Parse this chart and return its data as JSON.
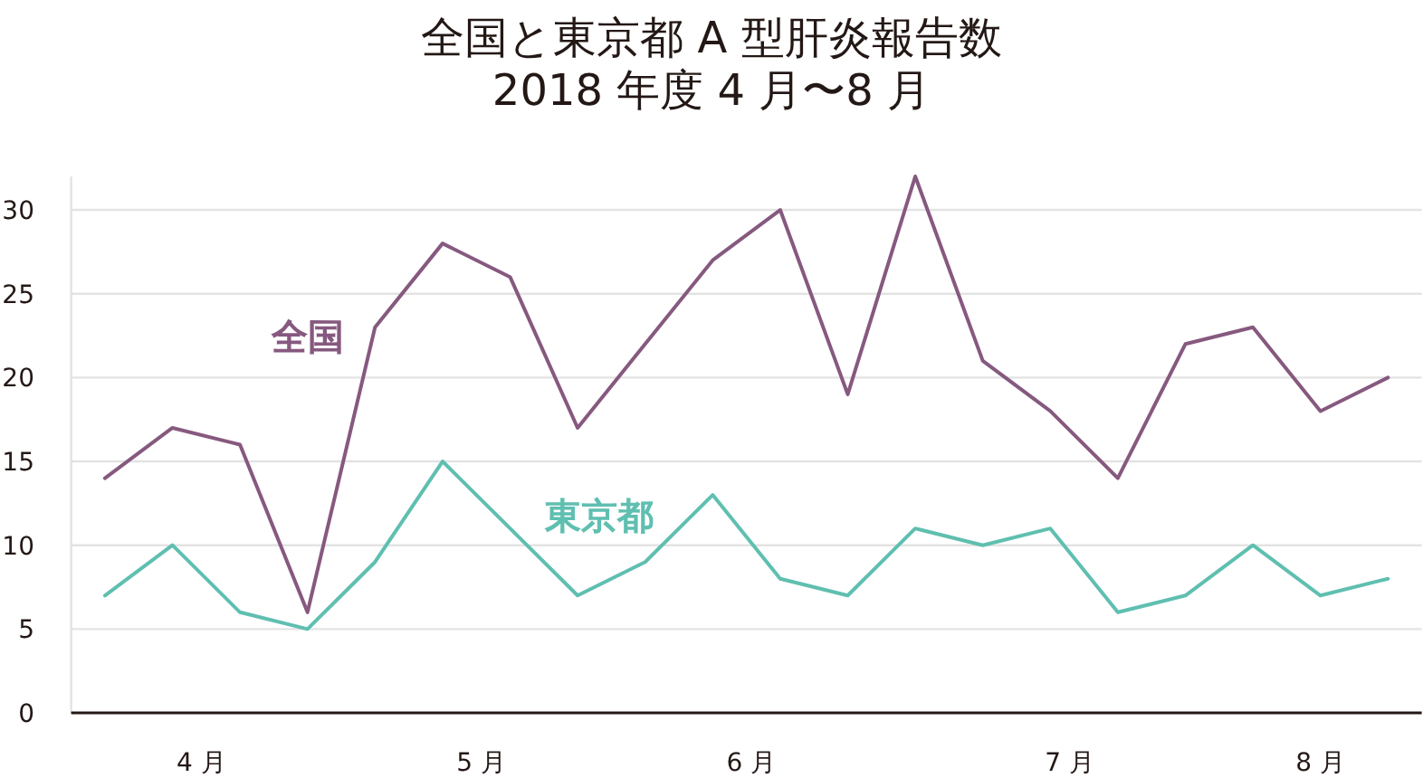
{
  "chart_data": {
    "type": "line",
    "title": "全国と東京都 A 型肝炎報告数",
    "subtitle": "2018 年度 4 月〜8 月",
    "x": [
      "2018-04-05",
      "2018-04-12",
      "2018-04-19",
      "2018-04-26",
      "2018-05-03",
      "2018-05-10",
      "2018-05-17",
      "2018-05-24",
      "2018-05-31",
      "2018-06-07",
      "2018-06-14",
      "2018-06-21",
      "2018-06-28",
      "2018-07-05",
      "2018-07-12",
      "2018-07-19",
      "2018-07-26",
      "2018-08-02",
      "2018-08-09",
      "2018-08-16"
    ],
    "xlim": [
      "2018-04-01T12:00",
      "2018-08-19T12:00"
    ],
    "xticks": [
      {
        "value": "2018-04-15",
        "label": "4 月"
      },
      {
        "value": "2018-05-14",
        "label": "5 月"
      },
      {
        "value": "2018-06-11",
        "label": "6 月"
      },
      {
        "value": "2018-07-14",
        "label": "7 月"
      },
      {
        "value": "2018-08-09",
        "label": "8 月"
      }
    ],
    "ylim": [
      0,
      32
    ],
    "yticks": [
      0,
      5,
      10,
      15,
      20,
      25,
      30
    ],
    "grid": "y",
    "series": [
      {
        "name": "全国",
        "color": "#86597f",
        "values": [
          14,
          17,
          16,
          6,
          23,
          28,
          26,
          17,
          22,
          27,
          30,
          19,
          32,
          21,
          18,
          14,
          22,
          23,
          18,
          20
        ]
      },
      {
        "name": "東京都",
        "color": "#5fbfb0",
        "values": [
          7,
          10,
          6,
          5,
          9,
          15,
          11,
          7,
          9,
          13,
          8,
          7,
          11,
          10,
          11,
          6,
          7,
          10,
          7,
          8
        ]
      }
    ]
  }
}
